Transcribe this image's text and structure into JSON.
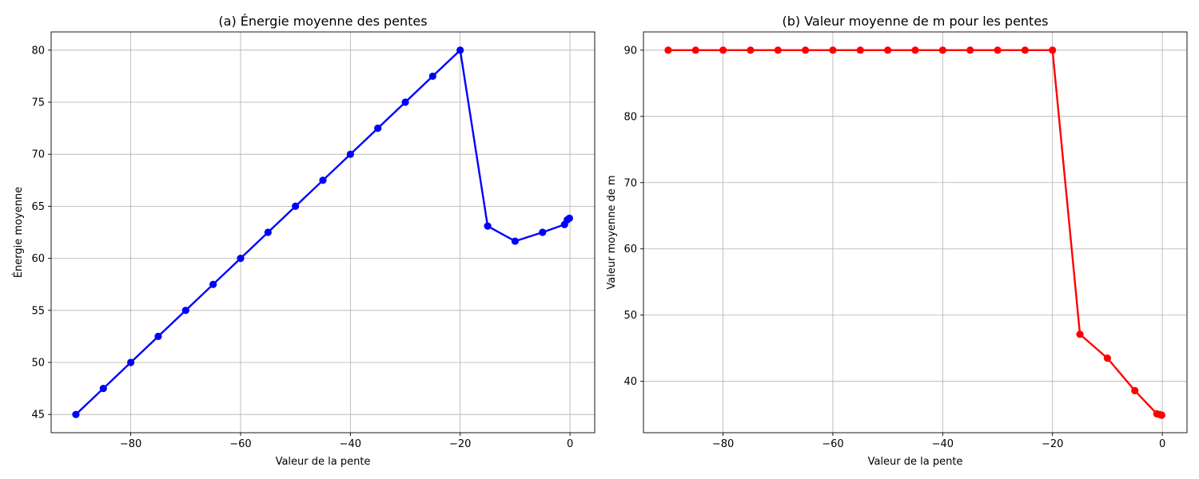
{
  "chart_data": [
    {
      "type": "line",
      "title": "(a) Énergie moyenne des pentes",
      "xlabel": "Valeur de la pente",
      "ylabel": "Énergie moyenne",
      "xlim": [
        -94.5,
        4.5
      ],
      "ylim": [
        43.25,
        81.75
      ],
      "xticks": [
        -80,
        -60,
        -40,
        -20,
        0
      ],
      "xtick_labels": [
        "−80",
        "−60",
        "−40",
        "−20",
        "0"
      ],
      "yticks": [
        45,
        50,
        55,
        60,
        65,
        70,
        75,
        80
      ],
      "ytick_labels": [
        "45",
        "50",
        "55",
        "60",
        "65",
        "70",
        "75",
        "80"
      ],
      "grid": true,
      "color": "#0000ff",
      "series": [
        {
          "x": [
            -90,
            -85,
            -80,
            -75,
            -70,
            -65,
            -60,
            -55,
            -50,
            -45,
            -40,
            -35,
            -30,
            -25,
            -20,
            -15,
            -10,
            -5,
            -1,
            -0.5,
            -0.1
          ],
          "values": [
            45,
            47.5,
            50,
            52.5,
            55,
            57.5,
            60,
            62.5,
            65,
            67.5,
            70,
            72.5,
            75,
            77.5,
            80,
            63.1,
            61.65,
            62.5,
            63.25,
            63.7,
            63.85
          ]
        }
      ]
    },
    {
      "type": "line",
      "title": "(b) Valeur moyenne de m pour les pentes",
      "xlabel": "Valeur de la pente",
      "ylabel": "Valeur moyenne de m",
      "xlim": [
        -94.5,
        4.5
      ],
      "ylim": [
        32.25,
        92.75
      ],
      "xticks": [
        -80,
        -60,
        -40,
        -20,
        0
      ],
      "xtick_labels": [
        "−80",
        "−60",
        "−40",
        "−20",
        "0"
      ],
      "yticks": [
        40,
        50,
        60,
        70,
        80,
        90
      ],
      "ytick_labels": [
        "40",
        "50",
        "60",
        "70",
        "80",
        "90"
      ],
      "grid": true,
      "color": "#ff0000",
      "series": [
        {
          "x": [
            -90,
            -85,
            -80,
            -75,
            -70,
            -65,
            -60,
            -55,
            -50,
            -45,
            -40,
            -35,
            -30,
            -25,
            -20,
            -15,
            -10,
            -5,
            -1,
            -0.5,
            -0.1
          ],
          "values": [
            90,
            90,
            90,
            90,
            90,
            90,
            90,
            90,
            90,
            90,
            90,
            90,
            90,
            90,
            90,
            47.1,
            43.5,
            38.6,
            35.1,
            35.0,
            34.9
          ]
        }
      ]
    }
  ]
}
